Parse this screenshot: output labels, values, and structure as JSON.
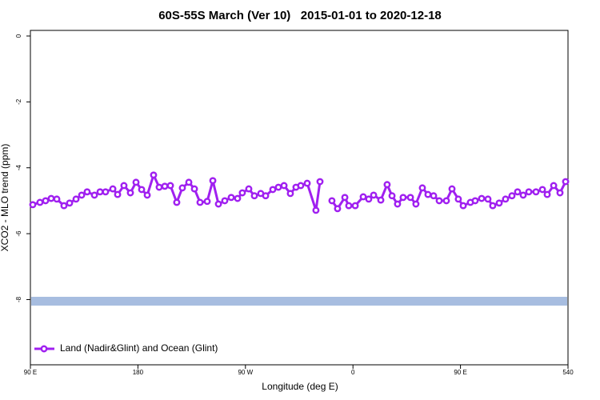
{
  "chart_data": {
    "type": "line",
    "title": "60S-55S March (Ver 10)   2015-01-01 to 2020-12-18",
    "x_label": "Longitude (deg E)",
    "y_label": "XCO2 - MLO trend (ppm)",
    "xlim": [
      90,
      540
    ],
    "ylim": [
      -9.98,
      0.17
    ],
    "xticks": [
      {
        "value": 90,
        "label": "90 E"
      },
      180,
      {
        "value": 270,
        "label": "90 W"
      },
      {
        "value": 360,
        "label": "0"
      },
      {
        "value": 450,
        "label": "90 E"
      },
      540
    ],
    "yticks": [
      0,
      -2,
      -4,
      -6,
      -8
    ],
    "grid": false,
    "legend": "bottom-left",
    "reference_line": {
      "value": -8.05,
      "color": "#a7bde0"
    },
    "series": [
      {
        "name": "Land (Nadir&Glint) and Ocean (Glint)",
        "color": "#a020f0",
        "x": [
          92.0,
          98.0,
          102.7,
          107.4,
          112.1,
          118.1,
          122.8,
          128.2,
          132.9,
          137.5,
          143.6,
          148.3,
          152.9,
          159.0,
          163.0,
          168.3,
          173.7,
          178.4,
          183.1,
          187.8,
          193.1,
          197.8,
          202.5,
          207.2,
          212.5,
          217.2,
          222.6,
          227.3,
          232.0,
          238.0,
          242.7,
          247.4,
          252.7,
          258.1,
          263.4,
          267.4,
          272.8,
          277.5,
          282.8,
          286.9,
          292.9,
          297.6,
          302.3,
          307.6,
          312.3,
          316.3,
          321.7,
          329.0,
          332.4,
          337.4,
          342.4,
          347.1,
          353.2,
          356.5,
          361.9,
          368.6,
          373.2,
          377.3,
          383.3,
          388.6,
          392.7,
          397.3,
          402.0,
          408.1,
          412.7,
          418.1,
          422.8,
          427.5,
          432.2,
          438.2,
          442.9,
          448.2,
          452.3,
          458.3,
          462.3,
          467.7,
          473.0,
          477.0,
          482.4,
          487.7,
          493.1,
          497.8,
          502.5,
          507.2,
          513.2,
          518.6,
          522.6,
          528.0,
          533.3,
          538.0
        ],
        "values": [
          -5.12,
          -5.05,
          -5.0,
          -4.93,
          -4.95,
          -5.15,
          -5.07,
          -4.95,
          -4.83,
          -4.73,
          -4.83,
          -4.73,
          -4.73,
          -4.64,
          -4.81,
          -4.54,
          -4.76,
          -4.44,
          -4.66,
          -4.83,
          -4.22,
          -4.59,
          -4.56,
          -4.54,
          -5.05,
          -4.61,
          -4.44,
          -4.64,
          -5.05,
          -5.02,
          -4.39,
          -5.1,
          -5.0,
          -4.9,
          -4.93,
          -4.76,
          -4.64,
          -4.85,
          -4.78,
          -4.85,
          -4.66,
          -4.59,
          -4.54,
          -4.78,
          -4.59,
          -4.54,
          -4.47,
          -5.29,
          -4.42,
          null,
          -5.0,
          -5.24,
          -4.9,
          -5.15,
          -5.15,
          -4.88,
          -4.95,
          -4.83,
          -4.98,
          -4.51,
          -4.85,
          -5.1,
          -4.9,
          -4.9,
          -5.1,
          -4.61,
          -4.81,
          -4.85,
          -5.0,
          -5.0,
          -4.64,
          -4.95,
          -5.15,
          -5.05,
          -5.0,
          -4.93,
          -4.95,
          -5.15,
          -5.07,
          -4.95,
          -4.85,
          -4.73,
          -4.83,
          -4.73,
          -4.73,
          -4.66,
          -4.81,
          -4.54,
          -4.76,
          -4.42
        ]
      }
    ]
  }
}
